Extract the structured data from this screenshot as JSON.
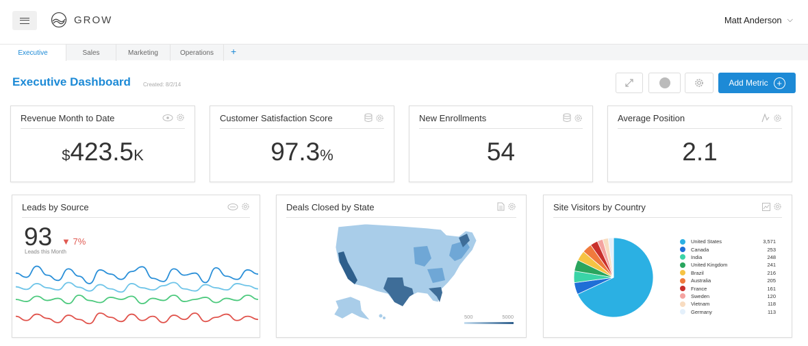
{
  "header": {
    "brand": "GROW",
    "user_name": "Matt Anderson"
  },
  "tabs": [
    {
      "label": "Executive",
      "active": true
    },
    {
      "label": "Sales",
      "active": false
    },
    {
      "label": "Marketing",
      "active": false
    },
    {
      "label": "Operations",
      "active": false
    }
  ],
  "dashboard": {
    "title": "Executive Dashboard",
    "created": "Created: 8/2/14",
    "add_metric_label": "Add Metric"
  },
  "metrics": [
    {
      "title": "Revenue Month to Date",
      "prefix": "$",
      "value": "423.5",
      "suffix": "K",
      "icon": "eye-icon"
    },
    {
      "title": "Customer Satisfaction Score",
      "prefix": "",
      "value": "97.3",
      "suffix": "%",
      "icon": "database-icon"
    },
    {
      "title": "New Enrollments",
      "prefix": "",
      "value": "54",
      "suffix": "",
      "icon": "database-icon"
    },
    {
      "title": "Average Position",
      "prefix": "",
      "value": "2.1",
      "suffix": "",
      "icon": "analytics-icon"
    }
  ],
  "leads": {
    "title": "Leads by Source",
    "value": "93",
    "change": "7%",
    "change_direction": "down",
    "subtitle": "Leads this Month",
    "icon": "source-logo-icon",
    "series_colors": [
      "#2a8fd8",
      "#6ec4e8",
      "#4cc97d",
      "#e0524b"
    ],
    "series": [
      [
        68,
        76,
        55,
        72,
        82,
        60,
        74,
        88,
        62,
        70,
        80,
        65,
        56,
        78,
        84,
        60,
        72,
        68,
        86,
        58,
        74,
        80,
        62,
        70
      ],
      [
        94,
        99,
        88,
        96,
        100,
        86,
        95,
        102,
        90,
        98,
        104,
        88,
        96,
        100,
        92,
        86,
        98,
        102,
        90,
        96,
        100,
        88,
        92,
        98
      ],
      [
        118,
        122,
        112,
        120,
        116,
        126,
        110,
        120,
        124,
        114,
        118,
        112,
        126,
        116,
        120,
        110,
        122,
        118,
        114,
        124,
        116,
        120,
        110,
        118
      ],
      [
        150,
        158,
        146,
        154,
        162,
        148,
        156,
        164,
        144,
        152,
        160,
        146,
        158,
        150,
        162,
        148,
        156,
        144,
        160,
        152,
        146,
        158,
        150,
        156
      ]
    ]
  },
  "deals": {
    "title": "Deals Closed by State",
    "icon": "document-icon",
    "scale_min": "500",
    "scale_max": "5000",
    "colors": {
      "low": "#a9cde9",
      "mid": "#6fa7d6",
      "high": "#3e6d98",
      "darkest": "#2e5f8c"
    }
  },
  "visitors": {
    "title": "Site Visitors by Country",
    "icon": "chart-icon"
  },
  "chart_data": {
    "type": "pie",
    "title": "Site Visitors by Country",
    "categories": [
      "United States",
      "Canada",
      "India",
      "United Kingdom",
      "Brazil",
      "Australia",
      "France",
      "Sweden",
      "Vietnam",
      "Germany"
    ],
    "values": [
      3571,
      253,
      248,
      241,
      216,
      205,
      161,
      120,
      118,
      113
    ],
    "colors": [
      "#2bb0e3",
      "#1f6fd6",
      "#3ad4a7",
      "#2aa55e",
      "#f6c343",
      "#f07a3c",
      "#c9302c",
      "#f4a3a0",
      "#f8dcc0",
      "#e4f0fb"
    ],
    "legend": "right"
  }
}
